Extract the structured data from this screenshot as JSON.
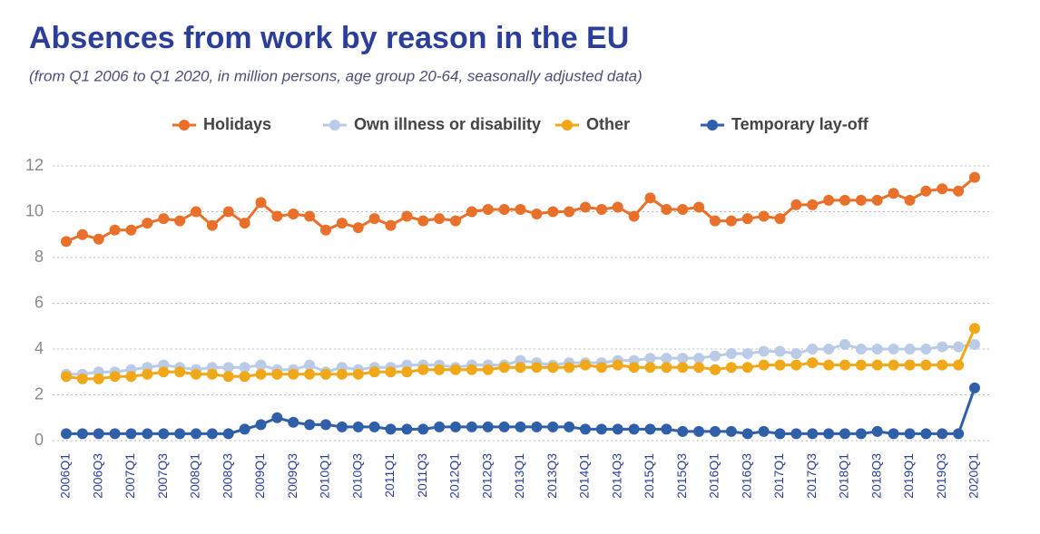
{
  "chart_data": {
    "type": "line",
    "title": "Absences from work by reason in the EU",
    "subtitle": "(from Q1 2006 to Q1 2020, in million persons, age group 20-64, seasonally adjusted data)",
    "categories": [
      "2006Q1",
      null,
      "2006Q3",
      null,
      "2007Q1",
      null,
      "2007Q3",
      null,
      "2008Q1",
      null,
      "2008Q3",
      null,
      "2009Q1",
      null,
      "2009Q3",
      null,
      "2010Q1",
      null,
      "2010Q3",
      null,
      "2011Q1",
      null,
      "2011Q3",
      null,
      "2012Q1",
      null,
      "2012Q3",
      null,
      "2013Q1",
      null,
      "2013Q3",
      null,
      "2014Q1",
      null,
      "2014Q3",
      null,
      "2015Q1",
      null,
      "2015Q3",
      null,
      "2016Q1",
      null,
      "2016Q3",
      null,
      "2017Q1",
      null,
      "2017Q3",
      null,
      "2018Q1",
      null,
      "2018Q3",
      null,
      "2019Q1",
      null,
      "2019Q3",
      null,
      "2020Q1"
    ],
    "series": [
      {
        "name": "Holidays",
        "color": "#e8702a",
        "values": [
          8.7,
          9.0,
          8.8,
          9.2,
          9.2,
          9.5,
          9.7,
          9.6,
          10.0,
          9.4,
          10.0,
          9.5,
          10.4,
          9.8,
          9.9,
          9.8,
          9.2,
          9.5,
          9.3,
          9.7,
          9.4,
          9.8,
          9.6,
          9.7,
          9.6,
          10.0,
          10.1,
          10.1,
          10.1,
          9.9,
          10.0,
          10.0,
          10.2,
          10.1,
          10.2,
          9.8,
          10.6,
          10.1,
          10.1,
          10.2,
          9.6,
          9.6,
          9.7,
          9.8,
          9.7,
          10.3,
          10.3,
          10.5,
          10.5,
          10.5,
          10.5,
          10.8,
          10.5,
          10.9,
          11.0,
          10.9,
          11.5
        ]
      },
      {
        "name": "Own illness or disability",
        "color": "#b9cbe6",
        "values": [
          2.9,
          2.9,
          3.0,
          3.0,
          3.1,
          3.2,
          3.3,
          3.2,
          3.1,
          3.2,
          3.2,
          3.2,
          3.3,
          3.1,
          3.1,
          3.3,
          3.0,
          3.2,
          3.1,
          3.2,
          3.2,
          3.3,
          3.3,
          3.3,
          3.2,
          3.3,
          3.3,
          3.3,
          3.5,
          3.4,
          3.3,
          3.4,
          3.4,
          3.4,
          3.5,
          3.5,
          3.6,
          3.6,
          3.6,
          3.6,
          3.7,
          3.8,
          3.8,
          3.9,
          3.9,
          3.8,
          4.0,
          4.0,
          4.2,
          4.0,
          4.0,
          4.0,
          4.0,
          4.0,
          4.1,
          4.1,
          4.2
        ]
      },
      {
        "name": "Other",
        "color": "#f0a818",
        "values": [
          2.8,
          2.7,
          2.7,
          2.8,
          2.8,
          2.9,
          3.0,
          3.0,
          2.9,
          2.9,
          2.8,
          2.8,
          2.9,
          2.9,
          2.9,
          2.9,
          2.9,
          2.9,
          2.9,
          3.0,
          3.0,
          3.0,
          3.1,
          3.1,
          3.1,
          3.1,
          3.1,
          3.2,
          3.2,
          3.2,
          3.2,
          3.2,
          3.3,
          3.2,
          3.3,
          3.2,
          3.2,
          3.2,
          3.2,
          3.2,
          3.1,
          3.2,
          3.2,
          3.3,
          3.3,
          3.3,
          3.4,
          3.3,
          3.3,
          3.3,
          3.3,
          3.3,
          3.3,
          3.3,
          3.3,
          3.3,
          4.9
        ]
      },
      {
        "name": "Temporary lay-off",
        "color": "#2f5fa8",
        "values": [
          0.3,
          0.3,
          0.3,
          0.3,
          0.3,
          0.3,
          0.3,
          0.3,
          0.3,
          0.3,
          0.3,
          0.5,
          0.7,
          1.0,
          0.8,
          0.7,
          0.7,
          0.6,
          0.6,
          0.6,
          0.5,
          0.5,
          0.5,
          0.6,
          0.6,
          0.6,
          0.6,
          0.6,
          0.6,
          0.6,
          0.6,
          0.6,
          0.5,
          0.5,
          0.5,
          0.5,
          0.5,
          0.5,
          0.4,
          0.4,
          0.4,
          0.4,
          0.3,
          0.4,
          0.3,
          0.3,
          0.3,
          0.3,
          0.3,
          0.3,
          0.4,
          0.3,
          0.3,
          0.3,
          0.3,
          0.3,
          2.3
        ]
      }
    ],
    "ylim": [
      0,
      12
    ],
    "yticks": [
      0,
      2,
      4,
      6,
      8,
      10,
      12
    ],
    "grid": true,
    "legend": "top"
  }
}
